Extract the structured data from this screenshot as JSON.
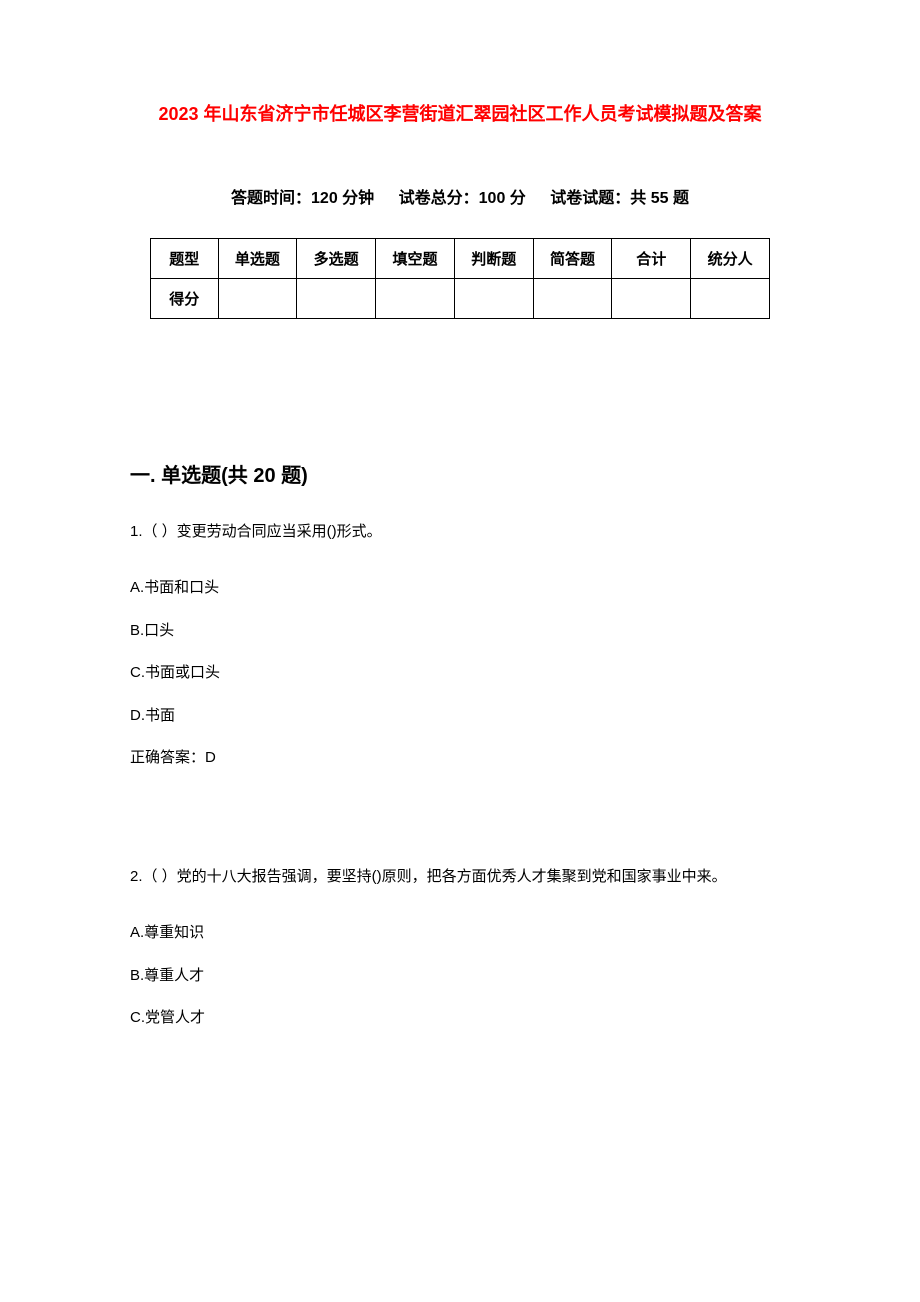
{
  "title": "2023 年山东省济宁市任城区李营街道汇翠园社区工作人员考试模拟题及答案",
  "examInfo": {
    "time": "答题时间：120 分钟",
    "total": "试卷总分：100 分",
    "count": "试卷试题：共 55 题"
  },
  "scoreTable": {
    "headers": [
      "题型",
      "单选题",
      "多选题",
      "填空题",
      "判断题",
      "简答题",
      "合计",
      "统分人"
    ],
    "row2label": "得分"
  },
  "section1": {
    "title": "一. 单选题(共 20 题)",
    "q1": {
      "text": "1.（ ）变更劳动合同应当采用()形式。",
      "optA": "A.书面和口头",
      "optB": "B.口头",
      "optC": "C.书面或口头",
      "optD": "D.书面",
      "answer": "正确答案：D"
    },
    "q2": {
      "text": "2.（ ）党的十八大报告强调，要坚持()原则，把各方面优秀人才集聚到党和国家事业中来。",
      "optA": "A.尊重知识",
      "optB": "B.尊重人才",
      "optC": "C.党管人才"
    }
  },
  "style": {
    "titleColor": "#ff0000",
    "textColor": "#000000",
    "bg": "#ffffff",
    "borderColor": "#000000",
    "titleFontSize": 18,
    "bodyFontSize": 15,
    "sectionFontSize": 20,
    "infoFontSize": 16
  }
}
